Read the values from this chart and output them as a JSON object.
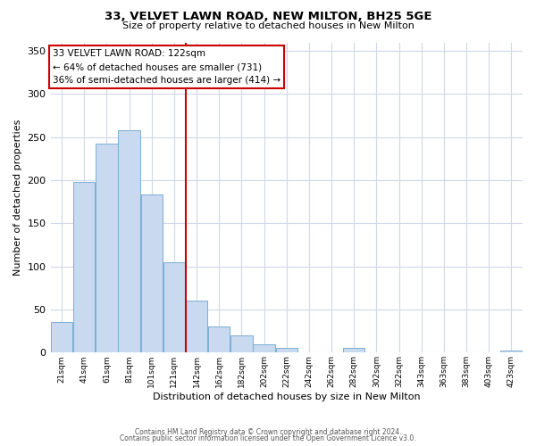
{
  "title": "33, VELVET LAWN ROAD, NEW MILTON, BH25 5GE",
  "subtitle": "Size of property relative to detached houses in New Milton",
  "xlabel": "Distribution of detached houses by size in New Milton",
  "ylabel": "Number of detached properties",
  "bar_labels": [
    "21sqm",
    "41sqm",
    "61sqm",
    "81sqm",
    "101sqm",
    "121sqm",
    "142sqm",
    "162sqm",
    "182sqm",
    "202sqm",
    "222sqm",
    "242sqm",
    "262sqm",
    "282sqm",
    "302sqm",
    "322sqm",
    "343sqm",
    "363sqm",
    "383sqm",
    "403sqm",
    "423sqm"
  ],
  "bar_heights": [
    35,
    198,
    242,
    258,
    183,
    105,
    60,
    30,
    20,
    10,
    5,
    0,
    0,
    5,
    0,
    0,
    0,
    0,
    0,
    0,
    2
  ],
  "bar_color": "#c8d9f0",
  "bar_edge_color": "#7bafd4",
  "vline_x_index": 5,
  "vline_color": "#cc0000",
  "annotation_title": "33 VELVET LAWN ROAD: 122sqm",
  "annotation_line1": "← 64% of detached houses are smaller (731)",
  "annotation_line2": "36% of semi-detached houses are larger (414) →",
  "annotation_box_color": "#ffffff",
  "annotation_box_edge": "#cc0000",
  "ylim": [
    0,
    360
  ],
  "yticks": [
    0,
    50,
    100,
    150,
    200,
    250,
    300,
    350
  ],
  "footer1": "Contains HM Land Registry data © Crown copyright and database right 2024.",
  "footer2": "Contains public sector information licensed under the Open Government Licence v3.0.",
  "bg_color": "#ffffff",
  "grid_color": "#d0d8e8"
}
